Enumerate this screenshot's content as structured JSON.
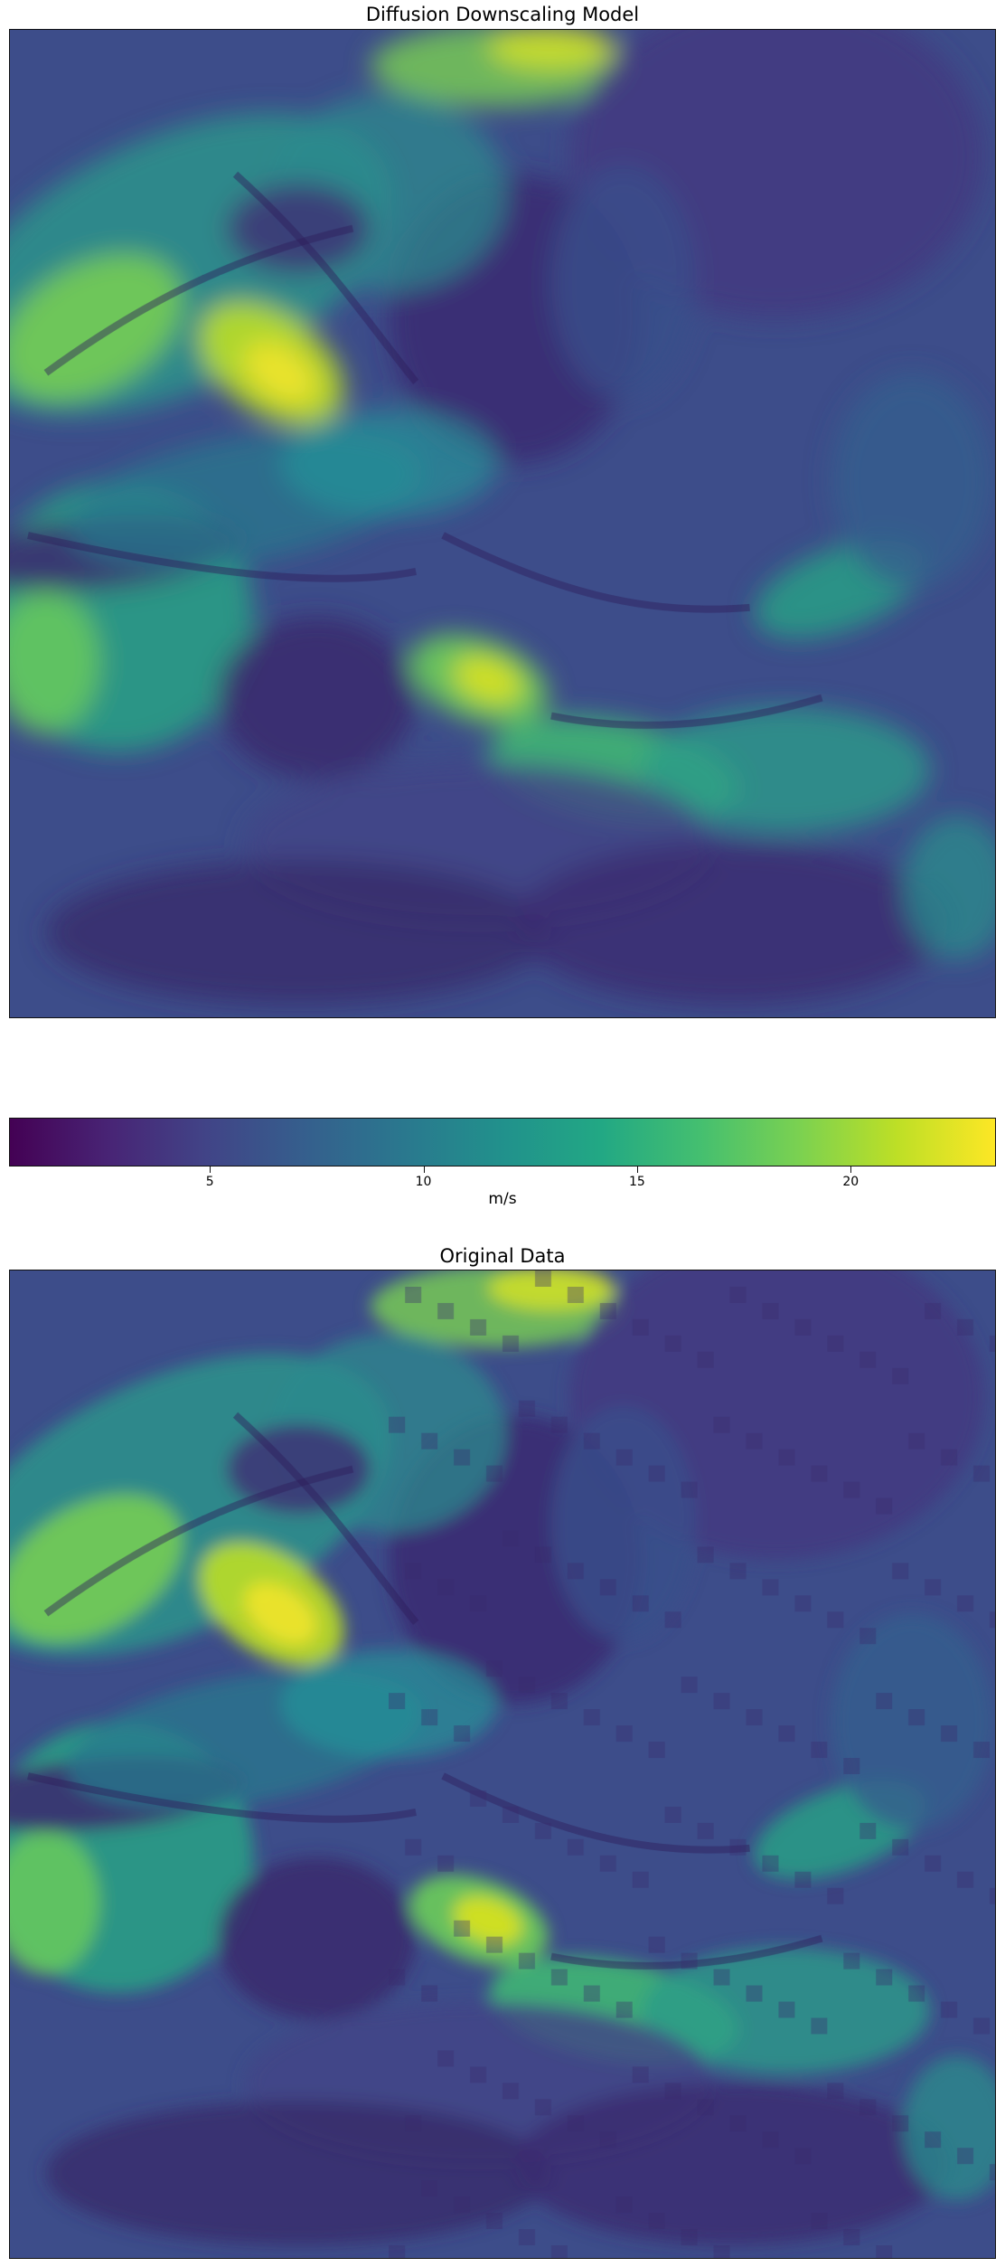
{
  "chart_data": [
    {
      "type": "heatmap",
      "title": "Diffusion Downscaling Model",
      "colormap": "viridis",
      "value_range": [
        0.3,
        23.4
      ],
      "colorbar": {
        "label": "m/s",
        "ticks": [
          5,
          10,
          15,
          20
        ]
      },
      "xlabel": "",
      "ylabel": "",
      "grid": false
    },
    {
      "type": "heatmap",
      "title": "Original Data",
      "colormap": "viridis",
      "value_range": [
        0.3,
        23.4
      ],
      "colorbar": {
        "label": "m/s",
        "ticks": [
          5,
          10,
          15,
          20
        ]
      },
      "xlabel": "",
      "ylabel": "",
      "grid": false
    }
  ],
  "colors": {
    "low": "#440154",
    "mid": "#21918c",
    "high": "#fde725"
  }
}
